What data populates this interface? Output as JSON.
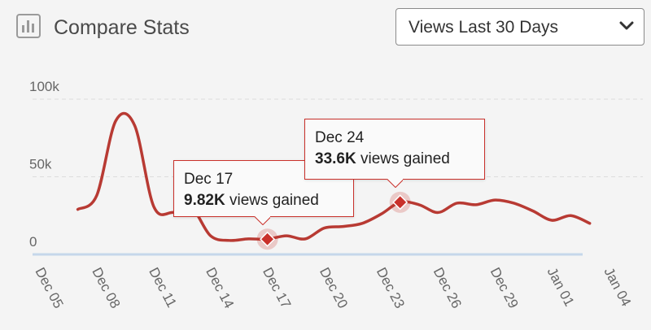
{
  "header": {
    "title": "Compare Stats",
    "title_icon": "bar-chart-icon",
    "select_value": "Views Last 30 Days",
    "select_icon": "chevron-down-icon"
  },
  "colors": {
    "line": "#b83a33",
    "accent": "#c9312b",
    "baseline": "#c5d7ea",
    "grid": "#dcdcdc",
    "tick_text": "#666666",
    "background": "#f4f4f4"
  },
  "tooltips": [
    {
      "date": "Dec 17",
      "value": "9.82K",
      "suffix": " views gained"
    },
    {
      "date": "Dec 24",
      "value": "33.6K",
      "suffix": " views gained"
    }
  ],
  "chart_data": {
    "type": "line",
    "title": "",
    "xlabel": "",
    "ylabel": "",
    "ylim": [
      0,
      100000
    ],
    "y_ticks": [
      {
        "value": 0,
        "label": "0"
      },
      {
        "value": 50000,
        "label": "50k"
      },
      {
        "value": 100000,
        "label": "100k"
      }
    ],
    "x_tick_labels": [
      "Dec 05",
      "Dec 08",
      "Dec 11",
      "Dec 14",
      "Dec 17",
      "Dec 20",
      "Dec 23",
      "Jan 01",
      "Jan 04"
    ],
    "x_tick_full": [
      "Dec 05",
      "Dec 08",
      "Dec 11",
      "Dec 14",
      "Dec 17",
      "Dec 20",
      "Dec 23",
      "Dec 26",
      "Dec 29",
      "Jan 01",
      "Jan 04"
    ],
    "x_range": [
      "Dec 05",
      "Jan 04"
    ],
    "grid": true,
    "series": [
      {
        "x": [
          "Dec 07",
          "Dec 08",
          "Dec 09",
          "Dec 10",
          "Dec 11",
          "Dec 12",
          "Dec 13",
          "Dec 14",
          "Dec 15",
          "Dec 16",
          "Dec 17",
          "Dec 18",
          "Dec 19",
          "Dec 20",
          "Dec 21",
          "Dec 22",
          "Dec 23",
          "Dec 24",
          "Dec 25",
          "Dec 26",
          "Dec 27",
          "Dec 28",
          "Dec 29",
          "Dec 30",
          "Dec 31",
          "Jan 01",
          "Jan 02",
          "Jan 03"
        ],
        "values": [
          29000,
          38000,
          86000,
          83000,
          31000,
          27000,
          30000,
          12000,
          9000,
          10000,
          9820,
          12000,
          10000,
          17000,
          18000,
          20000,
          26000,
          33600,
          32000,
          27000,
          33000,
          32000,
          35000,
          33000,
          28000,
          22000,
          25000,
          20000
        ]
      }
    ],
    "highlights": [
      {
        "x": "Dec 17",
        "value": 9820
      },
      {
        "x": "Dec 24",
        "value": 33600
      }
    ]
  }
}
